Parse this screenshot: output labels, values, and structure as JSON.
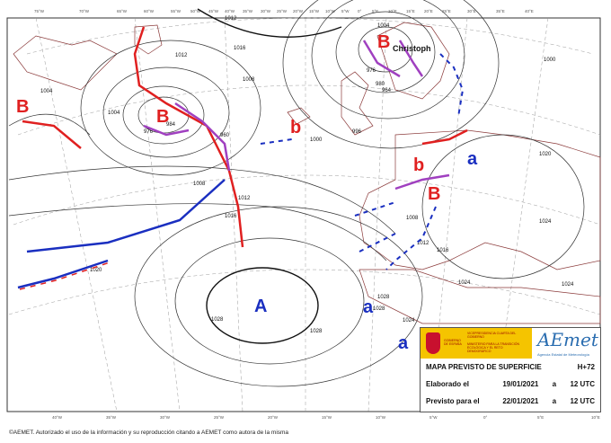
{
  "map": {
    "top_longitudes": [
      "75°W",
      "70°W",
      "65°W",
      "60°W",
      "55°W",
      "50°W",
      "45°W",
      "40°W",
      "35°W",
      "30°W",
      "25°W",
      "20°W",
      "15°W",
      "10°W",
      "5°W",
      "0°",
      "5°E",
      "10°E",
      "15°E",
      "20°E",
      "25°E",
      "30°E",
      "35°E",
      "40°E"
    ],
    "bottom_longitudes": [
      "40°W",
      "35°W",
      "30°W",
      "25°W",
      "20°W",
      "15°W",
      "10°W",
      "5°W",
      "0°",
      "5°E",
      "10°E"
    ],
    "systems": [
      {
        "label": "B",
        "type": "low",
        "color": "#e02020"
      },
      {
        "label": "B",
        "type": "low",
        "color": "#e02020"
      },
      {
        "label": "b",
        "type": "low",
        "color": "#e02020"
      },
      {
        "label": "B",
        "type": "low",
        "color": "#e02020",
        "name": "Christoph"
      },
      {
        "label": "b",
        "type": "low",
        "color": "#e02020"
      },
      {
        "label": "B",
        "type": "low",
        "color": "#e02020"
      },
      {
        "label": "a",
        "type": "high",
        "color": "#1a2fc0"
      },
      {
        "label": "A",
        "type": "high",
        "color": "#1a2fc0"
      },
      {
        "label": "a",
        "type": "high",
        "color": "#1a2fc0"
      },
      {
        "label": "a",
        "type": "high",
        "color": "#1a2fc0"
      }
    ],
    "isobar_labels": [
      "1012",
      "1016",
      "1012",
      "1008",
      "1004",
      "1004",
      "984",
      "976",
      "960",
      "1008",
      "1000",
      "1016",
      "1012",
      "1020",
      "1028",
      "1028",
      "1024",
      "1028",
      "1028",
      "1024",
      "1024",
      "1024",
      "1020",
      "1016",
      "1012",
      "1008",
      "996",
      "980",
      "964",
      "976",
      "1004",
      "1000"
    ],
    "front_colors": {
      "cold": "#1a2fc0",
      "warm": "#e02020",
      "occluded": "#a040c0"
    }
  },
  "info": {
    "gov_line1": "GOBIERNO DE ESPAÑA",
    "gov_line2": "VICEPRESIDENCIA CUARTA DEL GOBIERNO",
    "gov_line3": "MINISTERIO PARA LA TRANSICIÓN ECOLÓGICA Y EL RETO DEMOGRÁFICO",
    "logo": "AEmet",
    "logo_sub": "Agencia Estatal de Meteorología",
    "title": "MAPA PREVISTO DE SUPERFICIE",
    "lead": "H+72",
    "elaborated_label": "Elaborado el",
    "elaborated_date": "19/01/2021",
    "elaborated_sep": "a",
    "elaborated_time": "12 UTC",
    "valid_label": "Previsto para el",
    "valid_date": "22/01/2021",
    "valid_sep": "a",
    "valid_time": "12 UTC"
  },
  "footer": "©AEMET. Autorizado el uso de la información y su reproducción citando a AEMET como autora de la misma"
}
